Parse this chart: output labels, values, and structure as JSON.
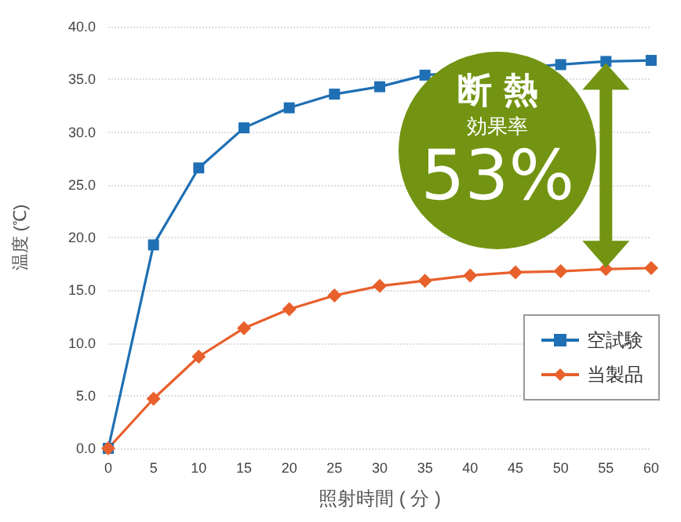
{
  "chart_data": {
    "type": "line",
    "x": [
      0,
      5,
      10,
      15,
      20,
      25,
      30,
      35,
      40,
      45,
      50,
      55,
      60
    ],
    "series": [
      {
        "name": "空試験",
        "color": "#1f6fb4",
        "marker": "square",
        "values": [
          0,
          19.3,
          26.6,
          30.4,
          32.3,
          33.6,
          34.3,
          35.4,
          null,
          null,
          36.4,
          36.7,
          36.8
        ]
      },
      {
        "name": "当製品",
        "color": "#e8602c",
        "marker": "diamond",
        "values": [
          0,
          4.7,
          8.7,
          11.4,
          13.2,
          14.5,
          15.4,
          15.9,
          16.4,
          16.7,
          16.8,
          17.0,
          17.1
        ]
      }
    ],
    "xlabel": "照射時間 ( 分 )",
    "ylabel": "温度 (℃)",
    "xlim": [
      0,
      60
    ],
    "xticks": [
      0,
      5,
      10,
      15,
      20,
      25,
      30,
      35,
      40,
      45,
      50,
      55,
      60
    ],
    "ylim": [
      0,
      40
    ],
    "yticks": [
      {
        "value": 0,
        "label": "0.0"
      },
      {
        "value": 5,
        "label": "5.0"
      },
      {
        "value": 10,
        "label": "10.0"
      },
      {
        "value": 15,
        "label": "15.0"
      },
      {
        "value": 20,
        "label": "20.0"
      },
      {
        "value": 25,
        "label": "25.0"
      },
      {
        "value": 30,
        "label": "30.0"
      },
      {
        "value": 35,
        "label": "35.0"
      },
      {
        "value": 40,
        "label": "40.0"
      }
    ],
    "grid": "y",
    "legend": "bottom right",
    "annotations": [
      "断 熱",
      "効果率",
      "53%"
    ]
  }
}
